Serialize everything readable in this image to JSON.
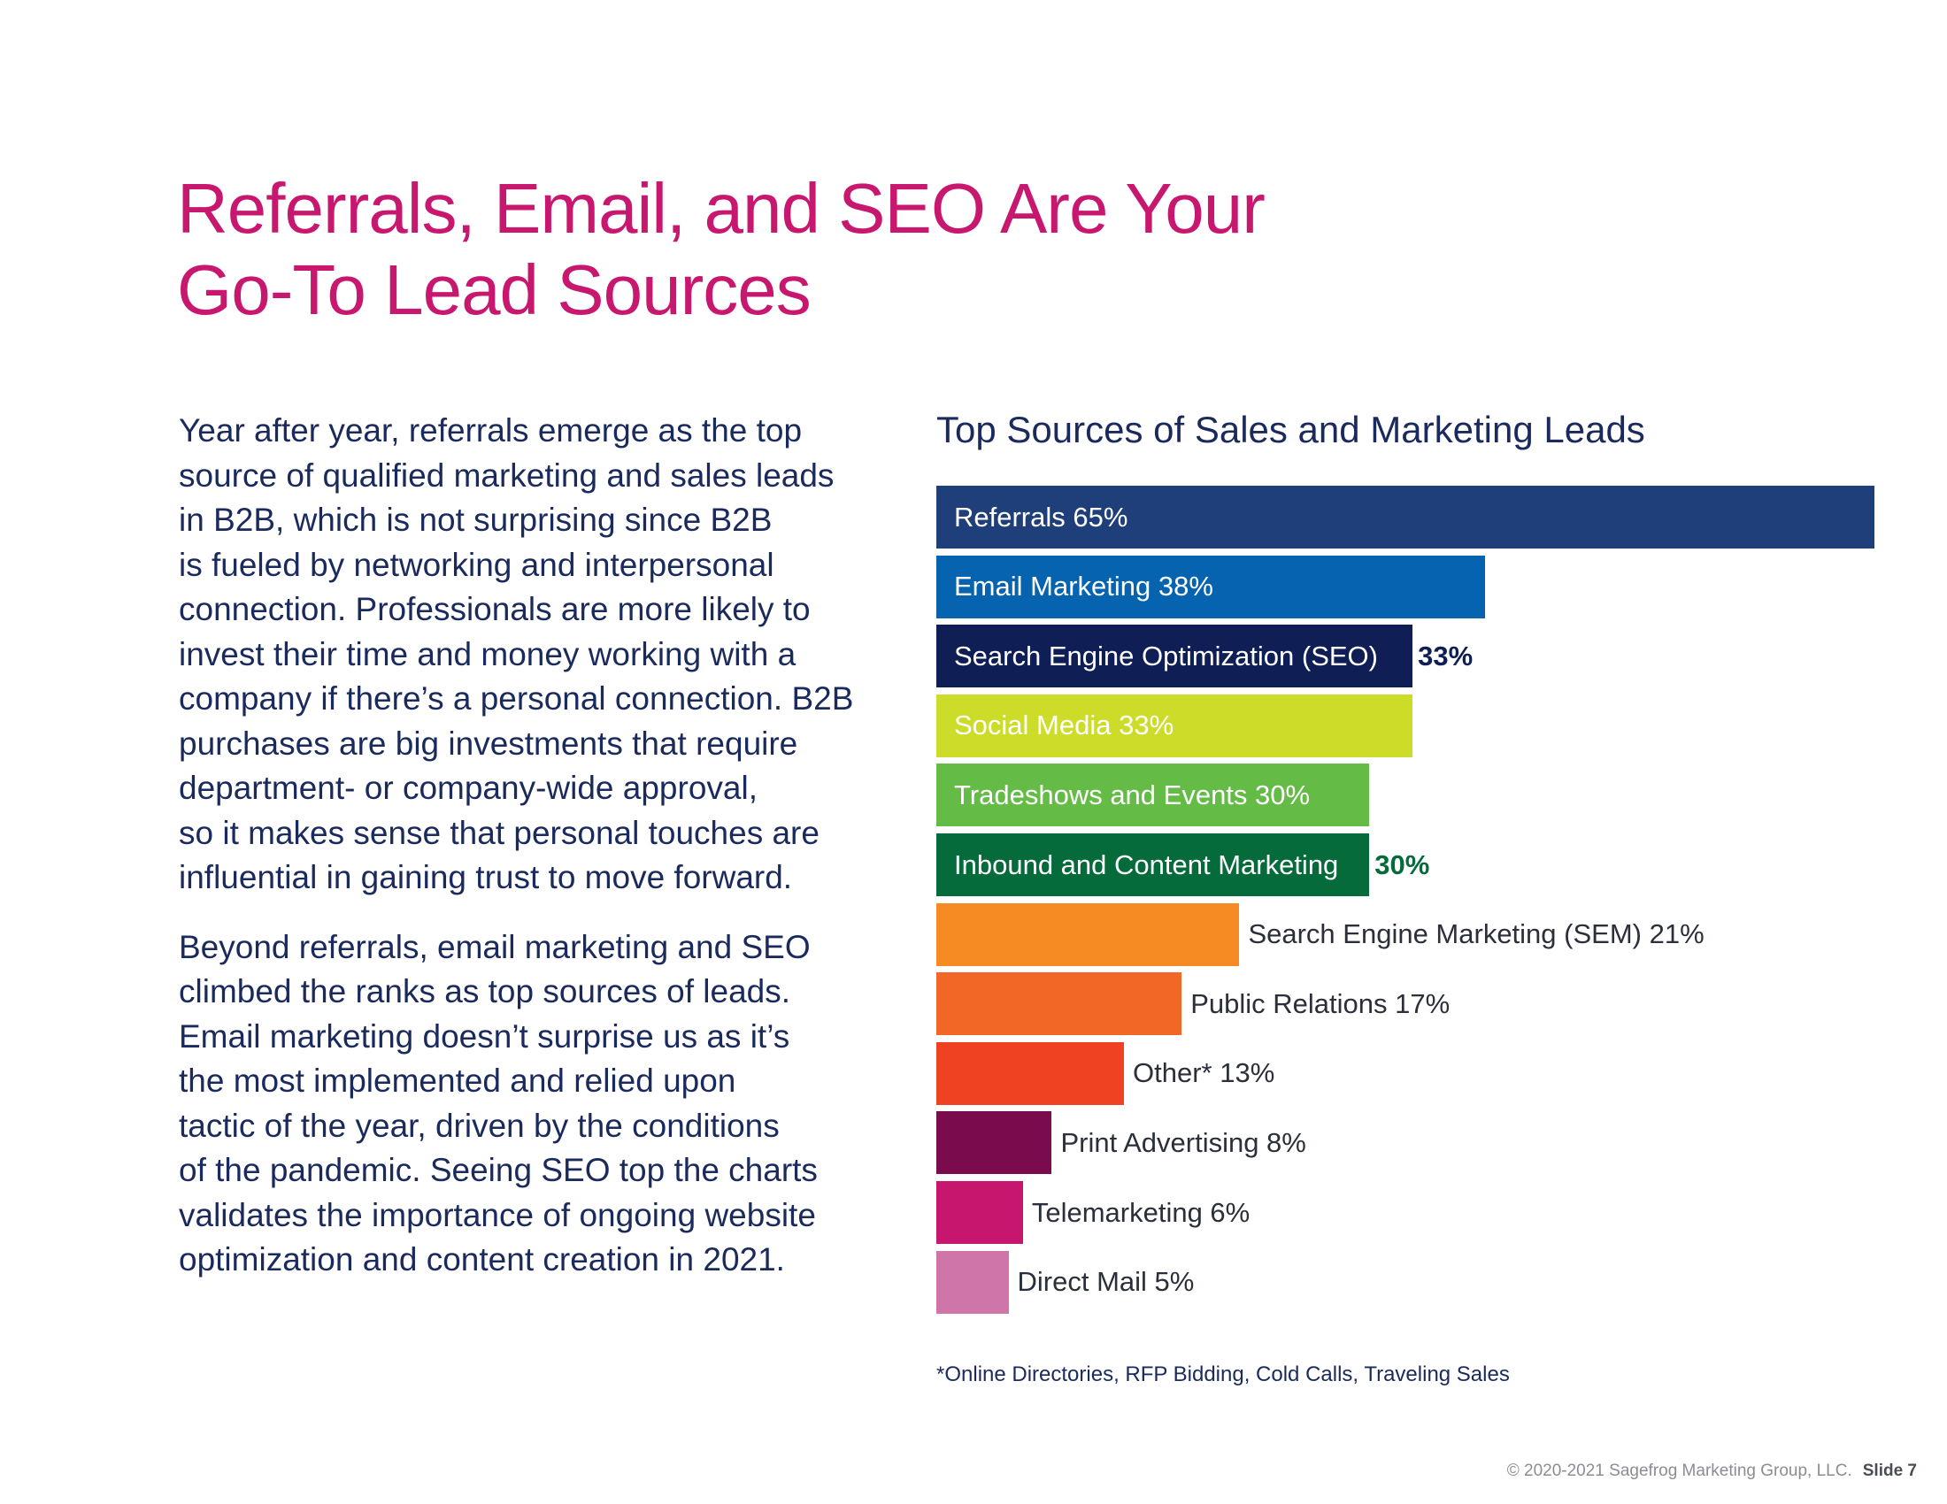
{
  "title_lines": [
    "Referrals, Email, and SEO Are Your",
    "Go-To Lead Sources"
  ],
  "paragraphs": [
    "Year after year, referrals emerge as the top\nsource of qualified marketing and sales leads\nin B2B, which is not surprising since B2B\nis fueled by networking and interpersonal\nconnection. Professionals are more likely to\ninvest their time and money working with a\ncompany if there’s a personal connection. B2B\npurchases are big investments that require\ndepartment- or company-wide approval,\nso it makes sense that personal touches are\ninfluential in gaining trust to move forward.",
    "Beyond referrals, email marketing and SEO\nclimbed the ranks as top sources of leads.\nEmail marketing doesn’t surprise us as it’s\nthe most implemented and relied upon\ntactic of the year, driven by the conditions\nof the pandemic. Seeing SEO top the charts\nvalidates the importance of ongoing website\noptimization and content creation in 2021."
  ],
  "chart_data": {
    "type": "bar",
    "orientation": "horizontal",
    "title": "Top Sources of Sales and Marketing Leads",
    "unit": "%",
    "bars": [
      {
        "name": "Referrals",
        "value": 65,
        "color": "#1f3f7a",
        "name_inside": true,
        "value_inside": true
      },
      {
        "name": "Email Marketing",
        "value": 38,
        "color": "#0563b0",
        "name_inside": true,
        "value_inside": true
      },
      {
        "name": "Search Engine Optimization (SEO)",
        "value": 33,
        "color": "#0f1f55",
        "name_inside": true,
        "value_inside": false,
        "value_color": "#0f1f55"
      },
      {
        "name": "Social Media",
        "value": 33,
        "color": "#cddc29",
        "name_inside": true,
        "value_inside": true
      },
      {
        "name": "Tradeshows and Events",
        "value": 30,
        "color": "#64bb46",
        "name_inside": true,
        "value_inside": true
      },
      {
        "name": "Inbound and Content Marketing",
        "value": 30,
        "color": "#056b3a",
        "name_inside": true,
        "value_inside": false,
        "value_color": "#056b3a"
      },
      {
        "name": "Search Engine Marketing (SEM)",
        "value": 21,
        "color": "#f58b22",
        "name_inside": false,
        "value_inside": false
      },
      {
        "name": "Public Relations",
        "value": 17,
        "color": "#f26725",
        "name_inside": false,
        "value_inside": false
      },
      {
        "name": "Other*",
        "value": 13,
        "color": "#ee4223",
        "name_inside": false,
        "value_inside": false
      },
      {
        "name": "Print Advertising",
        "value": 8,
        "color": "#7a0b4c",
        "name_inside": false,
        "value_inside": false
      },
      {
        "name": "Telemarketing",
        "value": 6,
        "color": "#c6166d",
        "name_inside": false,
        "value_inside": false
      },
      {
        "name": "Direct Mail",
        "value": 5,
        "color": "#d075aa",
        "name_inside": false,
        "value_inside": false
      }
    ],
    "footnote": "*Online Directories, RFP Bidding, Cold Calls, Traveling Sales"
  },
  "footer": {
    "copyright": "© 2020-2021 Sagefrog Marketing Group, LLC.",
    "slide": "Slide 7"
  }
}
